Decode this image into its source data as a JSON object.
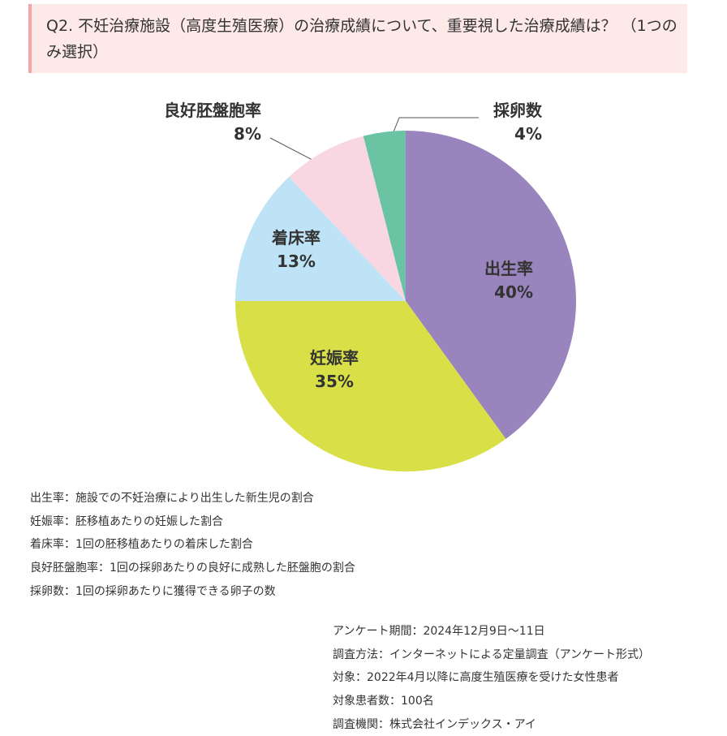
{
  "title": "Q2. 不妊治療施設（高度生殖医療）の治療成績について、重要視した治療成績は？ （1つのみ選択）",
  "chart_data": {
    "type": "pie",
    "categories": [
      "出生率",
      "妊娠率",
      "着床率",
      "良好胚盤胞率",
      "採卵数"
    ],
    "values": [
      40,
      35,
      13,
      8,
      4
    ],
    "value_labels": [
      "40%",
      "35%",
      "13%",
      "8%",
      "4%"
    ],
    "colors": [
      "#9a84bd",
      "#d9e047",
      "#bee3f6",
      "#f8d7e3",
      "#6ac3a3"
    ]
  },
  "notes": [
    "出生率：施設での不妊治療により出生した新生児の割合",
    "妊娠率：胚移植あたりの妊娠した割合",
    "着床率：1回の胚移植あたりの着床した割合",
    "良好胚盤胞率：1回の採卵あたりの良好に成熟した胚盤胞の割合",
    "採卵数：1回の採卵あたりに獲得できる卵子の数"
  ],
  "survey": [
    "アンケート期間：2024年12月9日〜11日",
    "調査方法：インターネットによる定量調査（アンケート形式）",
    "対象：2022年4月以降に高度生殖医療を受けた女性患者",
    "対象患者数：100名",
    "調査機関：株式会社インデックス・アイ"
  ]
}
